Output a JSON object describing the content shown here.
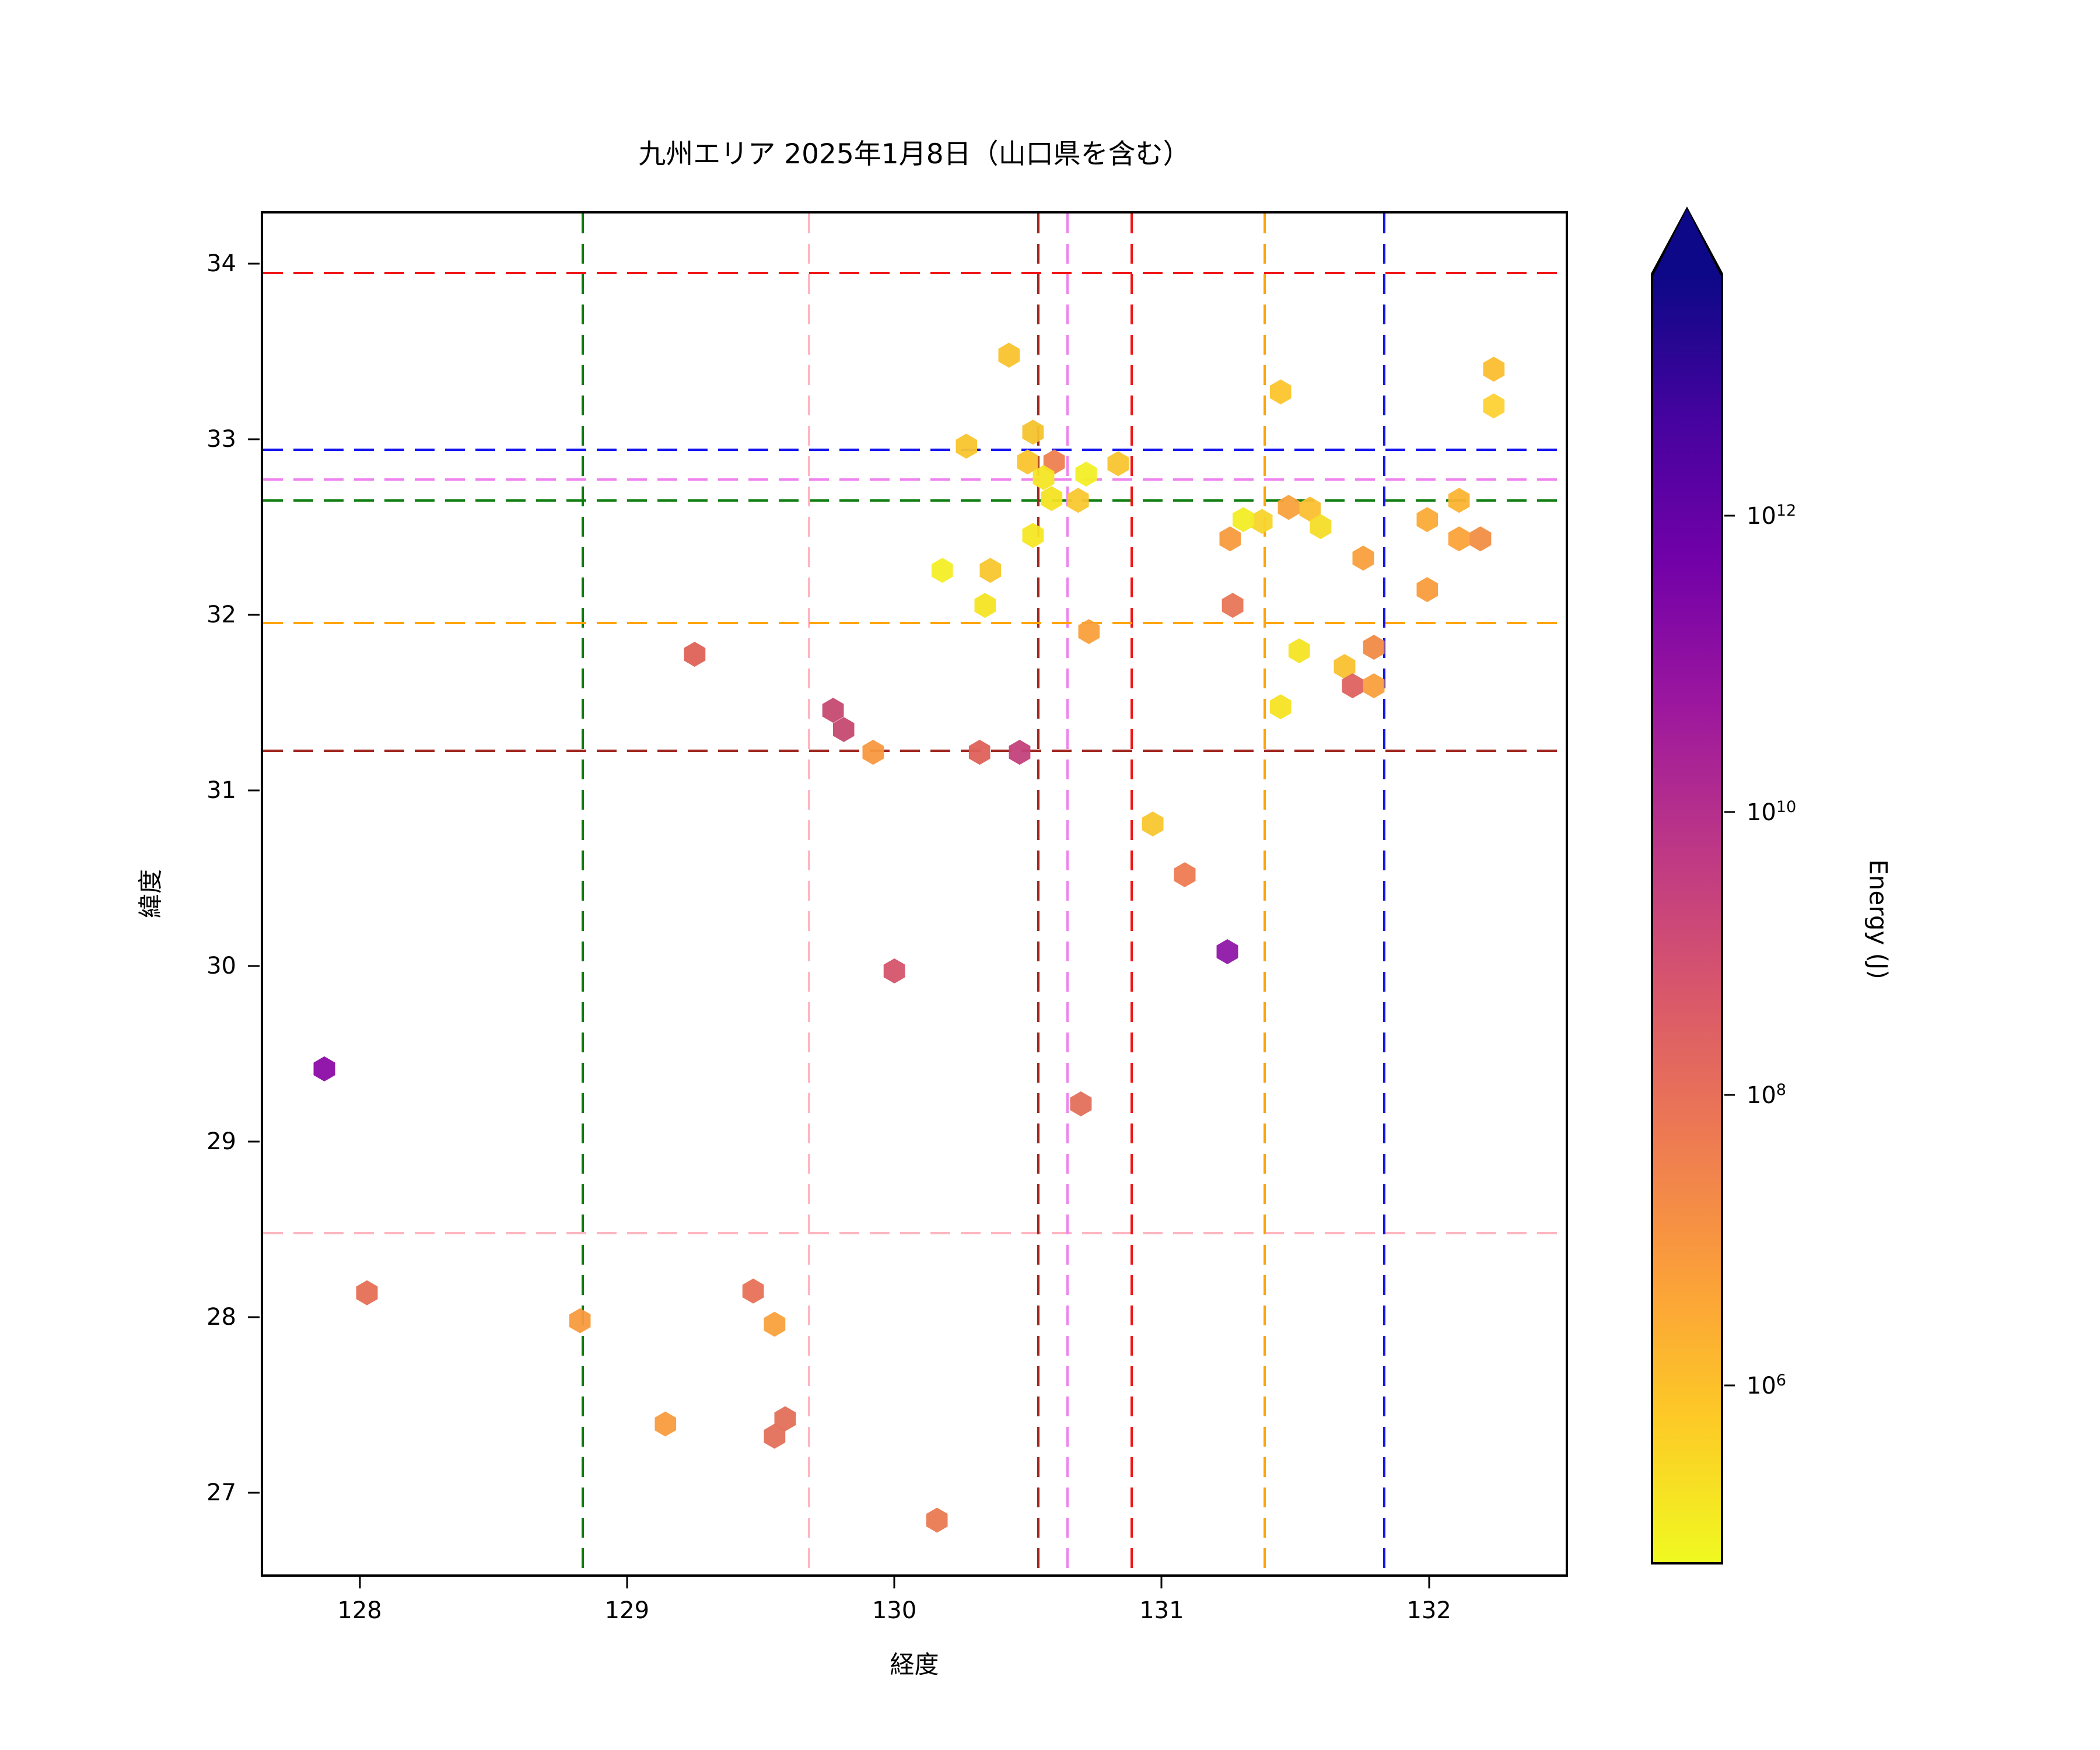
{
  "title": "九州エリア 2025年1月8日（山口県を含む）",
  "axes": {
    "xlabel": "経度",
    "ylabel": "緯度",
    "x_range": [
      127.63,
      132.52
    ],
    "y_range": [
      26.52,
      34.3
    ],
    "x_ticks": [
      128,
      129,
      130,
      131,
      132
    ],
    "y_ticks": [
      27,
      28,
      29,
      30,
      31,
      32,
      33,
      34
    ]
  },
  "reference_lines": [
    {
      "name": "green",
      "color": "#0f7d0f",
      "lon": 128.83,
      "lat": 32.66
    },
    {
      "name": "pink",
      "color": "#ffb6c1",
      "lon": 129.68,
      "lat": 28.47
    },
    {
      "name": "darkred",
      "color": "#a02820",
      "lon": 130.54,
      "lat": 31.23
    },
    {
      "name": "violet",
      "color": "#ee82ee",
      "lon": 130.65,
      "lat": 32.78
    },
    {
      "name": "red",
      "color": "#f01515",
      "lon": 130.89,
      "lat": 33.96
    },
    {
      "name": "orange",
      "color": "#ffa408",
      "lon": 131.39,
      "lat": 31.96
    },
    {
      "name": "blue",
      "color": "#1515f0",
      "lon": 131.84,
      "lat": 32.95
    }
  ],
  "colorbar": {
    "label": "Energy (J)",
    "extend": "max",
    "gradient_top_to_bottom": [
      "#0d0887",
      "#46039f",
      "#7201a8",
      "#9c179e",
      "#bd3786",
      "#d8576b",
      "#ed7953",
      "#fb9f3a",
      "#fdca26",
      "#f0f921"
    ],
    "ticks": [
      {
        "base": "10",
        "exponent": "12",
        "frac_from_rect_top": 0.187
      },
      {
        "base": "10",
        "exponent": "10",
        "frac_from_rect_top": 0.417
      },
      {
        "base": "10",
        "exponent": "8",
        "frac_from_rect_top": 0.636
      },
      {
        "base": "10",
        "exponent": "6",
        "frac_from_rect_top": 0.861
      }
    ]
  },
  "chart_data": {
    "type": "scatter",
    "marker": "hexagon",
    "title": "九州エリア 2025年1月8日（山口県を含む）",
    "xlabel": "経度",
    "ylabel": "緯度",
    "colorbar_label": "Energy (J)",
    "xlim": [
      127.63,
      132.52
    ],
    "ylim": [
      26.52,
      34.3
    ],
    "grid": false,
    "points_format": [
      "lon",
      "lat",
      "color",
      "approx_energy_j"
    ],
    "points": [
      [
        130.43,
        33.49,
        "#f8c32d",
        "2e6"
      ],
      [
        131.45,
        33.28,
        "#fcc52d",
        "2e6"
      ],
      [
        132.25,
        33.41,
        "#fcbe2f",
        "2.5e6"
      ],
      [
        132.25,
        33.2,
        "#fdd233",
        "1.5e6"
      ],
      [
        130.52,
        33.05,
        "#f6c32e",
        "2e6"
      ],
      [
        130.27,
        32.97,
        "#f9c52e",
        "2e6"
      ],
      [
        130.5,
        32.88,
        "#fac42e",
        "2e6"
      ],
      [
        130.6,
        32.88,
        "#ee8050",
        "5e7"
      ],
      [
        130.84,
        32.87,
        "#f8c52f",
        "2e6"
      ],
      [
        130.56,
        32.79,
        "#f4e524",
        "4e5"
      ],
      [
        130.72,
        32.81,
        "#f2ef26",
        "2e5"
      ],
      [
        130.59,
        32.67,
        "#f3e322",
        "5e5"
      ],
      [
        130.69,
        32.66,
        "#f9c72e",
        "2e6"
      ],
      [
        130.52,
        32.46,
        "#f4e724",
        "3e5"
      ],
      [
        132.12,
        32.66,
        "#fcb433",
        "5e6"
      ],
      [
        132.0,
        32.55,
        "#fbab37",
        "7e6"
      ],
      [
        132.12,
        32.44,
        "#faa23a",
        "1e7"
      ],
      [
        132.2,
        32.44,
        "#f28e44",
        "3e7"
      ],
      [
        131.48,
        32.62,
        "#f9a23c",
        "1e7"
      ],
      [
        131.56,
        32.61,
        "#fbc030",
        "3e6"
      ],
      [
        131.6,
        32.51,
        "#f6dd28",
        "7e5"
      ],
      [
        131.38,
        32.54,
        "#f8d42b",
        "1e6"
      ],
      [
        131.31,
        32.55,
        "#f3ed26",
        "2e5"
      ],
      [
        131.26,
        32.44,
        "#f89b3d",
        "1.5e7"
      ],
      [
        131.76,
        32.33,
        "#f99f3c",
        "1e7"
      ],
      [
        132.0,
        32.15,
        "#f99c3d",
        "1.2e7"
      ],
      [
        130.18,
        32.26,
        "#f3ee26",
        "2e5"
      ],
      [
        130.36,
        32.26,
        "#f8c72e",
        "2e6"
      ],
      [
        130.34,
        32.06,
        "#f4e423",
        "4e5"
      ],
      [
        131.27,
        32.06,
        "#e87656",
        "8e7"
      ],
      [
        130.73,
        31.91,
        "#f9a03c",
        "1e7"
      ],
      [
        131.8,
        31.82,
        "#f18b46",
        "3e7"
      ],
      [
        131.69,
        31.71,
        "#f9c02f",
        "2.5e6"
      ],
      [
        131.52,
        31.8,
        "#f5e424",
        "4e5"
      ],
      [
        131.45,
        31.48,
        "#f5e324",
        "4e5"
      ],
      [
        131.72,
        31.6,
        "#dd6260",
        "2e8"
      ],
      [
        131.8,
        31.6,
        "#f9a03d",
        "1e7"
      ],
      [
        129.25,
        31.78,
        "#df6257",
        "2e8"
      ],
      [
        129.77,
        31.46,
        "#c64a71",
        "1.5e9"
      ],
      [
        129.81,
        31.35,
        "#c64a71",
        "1.5e9"
      ],
      [
        129.92,
        31.22,
        "#f8983f",
        "1.5e7"
      ],
      [
        130.32,
        31.22,
        "#de6159",
        "2e8"
      ],
      [
        130.47,
        31.22,
        "#c2417b",
        "3e9"
      ],
      [
        130.97,
        30.81,
        "#f8c62e",
        "2e6"
      ],
      [
        131.09,
        30.52,
        "#ee7b52",
        "6e7"
      ],
      [
        131.25,
        30.08,
        "#8f17a6",
        "2e11"
      ],
      [
        130.0,
        29.97,
        "#d5546c",
        "5e8"
      ],
      [
        130.7,
        29.21,
        "#e3705c",
        "1e8"
      ],
      [
        127.86,
        29.41,
        "#8b0ca6",
        "4e11"
      ],
      [
        128.02,
        28.13,
        "#e57055",
        "1e8"
      ],
      [
        128.82,
        27.97,
        "#f89b3e",
        "1.5e7"
      ],
      [
        129.47,
        28.14,
        "#e77257",
        "9e7"
      ],
      [
        129.55,
        27.95,
        "#f9a13c",
        "1e7"
      ],
      [
        129.14,
        27.38,
        "#f89c3e",
        "1.5e7"
      ],
      [
        129.59,
        27.41,
        "#e3705a",
        "1e8"
      ],
      [
        129.55,
        27.31,
        "#e3705a",
        "1e8"
      ],
      [
        130.16,
        26.83,
        "#ea7a52",
        "6e7"
      ]
    ]
  }
}
